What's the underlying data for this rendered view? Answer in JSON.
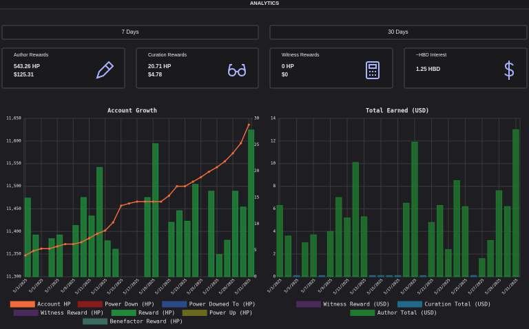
{
  "header": {
    "title": "ANALYTICS"
  },
  "buttons": [
    {
      "label": "7 Days",
      "active": false
    },
    {
      "label": "30 Days",
      "active": true
    }
  ],
  "cards": [
    {
      "title": "Author Rewards",
      "lines": [
        "543.26 HP",
        "$125.31"
      ]
    },
    {
      "title": "Curation Rewards",
      "lines": [
        "20.71 HP",
        "$4.78"
      ]
    },
    {
      "title": "Witness Rewards",
      "lines": [
        "0 HP",
        "$0"
      ]
    },
    {
      "title": "~HBD Interest",
      "lines": [
        "1.25 HBD"
      ]
    }
  ],
  "chart_data": [
    {
      "type": "combo",
      "title": "Account Growth",
      "categories": [
        "5/3/2025",
        null,
        "5/5/2025",
        null,
        "5/7/2025",
        null,
        "5/9/2025",
        null,
        "5/11/2025",
        null,
        "5/13/2025",
        null,
        "5/15/2025",
        null,
        "5/17/2025",
        null,
        "5/19/2025",
        null,
        "5/21/2025",
        null,
        "5/23/2025",
        null,
        "5/25/2025",
        null,
        "5/27/2025",
        null,
        "5/29/2025",
        null,
        "5/31/2025"
      ],
      "ylim": [
        11300,
        11650
      ],
      "yticks": [
        {
          "value": 11300,
          "label": "11,300"
        },
        {
          "value": 11350,
          "label": "11,350"
        },
        {
          "value": 11400,
          "label": "11,400"
        },
        {
          "value": 11450,
          "label": "11,450"
        },
        {
          "value": 11500,
          "label": "11,500"
        },
        {
          "value": 11550,
          "label": "11,550"
        },
        {
          "value": 11600,
          "label": "11,600"
        },
        {
          "value": 11650,
          "label": "11,650"
        }
      ],
      "y2lim": [
        0,
        30
      ],
      "y2ticks": [
        0,
        5,
        10,
        15,
        20,
        25,
        30
      ],
      "grid": true,
      "series": [
        {
          "name": "Account HP",
          "color": "#f26b38",
          "type": "line",
          "axis": "y",
          "values": [
            11347,
            11357,
            11362,
            11362,
            11367,
            11372,
            11372,
            11376,
            11385,
            11395,
            11402,
            11420,
            11457,
            11462,
            11466,
            11466,
            11466,
            11466,
            11479,
            11500,
            11500,
            11510,
            11520,
            11532,
            11542,
            11555,
            11573,
            11595,
            11636
          ]
        },
        {
          "name": "Power Down (HP)",
          "color": "#8b1a1a",
          "type": "bar",
          "axis": "y2",
          "values": [
            null,
            null,
            null,
            null,
            null,
            null,
            null,
            null,
            null,
            null,
            null,
            null,
            null,
            null,
            null,
            null,
            null,
            null,
            null,
            null,
            null,
            null,
            null,
            null,
            null,
            null,
            null,
            null,
            null
          ]
        },
        {
          "name": "Power Downed To (HP)",
          "color": "#2a4a8a",
          "type": "bar",
          "axis": "y2",
          "values": [
            null,
            null,
            null,
            null,
            null,
            null,
            null,
            null,
            null,
            null,
            null,
            null,
            null,
            null,
            null,
            null,
            null,
            null,
            null,
            null,
            null,
            null,
            null,
            null,
            null,
            null,
            null,
            null,
            null
          ]
        },
        {
          "name": "Witness Reward (HP)",
          "color": "#4a2a5a",
          "type": "bar",
          "axis": "y2",
          "values": [
            null,
            null,
            null,
            null,
            null,
            null,
            null,
            null,
            null,
            null,
            null,
            null,
            null,
            null,
            null,
            null,
            null,
            null,
            null,
            null,
            null,
            null,
            null,
            null,
            null,
            null,
            null,
            null,
            null
          ]
        },
        {
          "name": "Reward (HP)",
          "color": "#1f8a3b",
          "type": "bar",
          "axis": "y2",
          "values": [
            14.9,
            7.9,
            0,
            7.2,
            7.9,
            0,
            9.7,
            15,
            11.5,
            20.7,
            6.8,
            5.2,
            0,
            0,
            0,
            15,
            25.2,
            0,
            10.3,
            12.5,
            10.5,
            17.5,
            0,
            16.2,
            4.2,
            6.9,
            16.2,
            13.2,
            27.8
          ]
        },
        {
          "name": "Power Up (HP)",
          "color": "#6b6a1a",
          "type": "bar",
          "axis": "y2",
          "values": [
            null,
            null,
            null,
            null,
            null,
            null,
            null,
            null,
            null,
            null,
            null,
            null,
            null,
            null,
            null,
            null,
            null,
            null,
            null,
            null,
            null,
            null,
            null,
            null,
            null,
            null,
            null,
            null,
            null
          ]
        },
        {
          "name": "Benefactor Reward (HP)",
          "color": "#3a6a60",
          "type": "bar",
          "axis": "y2",
          "values": [
            null,
            null,
            null,
            null,
            null,
            null,
            null,
            null,
            null,
            null,
            null,
            null,
            null,
            null,
            null,
            null,
            null,
            null,
            null,
            null,
            null,
            null,
            null,
            null,
            null,
            null,
            null,
            null,
            null
          ]
        }
      ]
    },
    {
      "type": "bar",
      "title": "Total Earned (USD)",
      "categories": [
        "5/3/2025",
        null,
        "5/5/2025",
        null,
        "5/7/2025",
        null,
        "5/9/2025",
        null,
        "5/11/2025",
        null,
        "5/13/2025",
        null,
        "5/15/2025",
        null,
        "5/17/2025",
        null,
        "5/19/2025",
        null,
        "5/21/2025",
        null,
        "5/23/2025",
        null,
        "5/25/2025",
        null,
        "5/27/2025",
        null,
        "5/29/2025",
        null,
        "5/31/2025"
      ],
      "ylim": [
        0,
        14
      ],
      "yticks": [
        0,
        2,
        4,
        6,
        8,
        10,
        12,
        14
      ],
      "grid": true,
      "series": [
        {
          "name": "Witness Reward (USD)",
          "color": "#4a2a5a",
          "type": "bar",
          "values": [
            null,
            null,
            null,
            null,
            null,
            null,
            null,
            null,
            null,
            null,
            null,
            null,
            null,
            null,
            null,
            null,
            null,
            null,
            null,
            null,
            null,
            null,
            null,
            null,
            null,
            null,
            null,
            null,
            null
          ]
        },
        {
          "name": "Curation Total (USD)",
          "color": "#1f6a8a",
          "type": "bar",
          "values": [
            0.1,
            0.1,
            0.1,
            0.1,
            0.1,
            0.1,
            0.1,
            0.1,
            0.1,
            0.1,
            0.1,
            0.1,
            0.1,
            0.1,
            0.1,
            0.1,
            0.1,
            0.1,
            0.1,
            0.1,
            0.1,
            0.1,
            0.1,
            0.1,
            0.1,
            0.1,
            0.1,
            0.1,
            0.1
          ]
        },
        {
          "name": "Author Total (USD)",
          "color": "#1f7a2e",
          "type": "bar",
          "values": [
            6.3,
            3.6,
            0,
            3.0,
            3.7,
            0,
            4.0,
            7.0,
            5.2,
            10.1,
            5.3,
            0,
            0,
            0,
            0,
            6.5,
            11.9,
            0,
            4.8,
            6.3,
            2.4,
            8.5,
            6.2,
            0,
            1.6,
            3.2,
            7.6,
            6.2,
            13.0
          ]
        }
      ]
    }
  ]
}
